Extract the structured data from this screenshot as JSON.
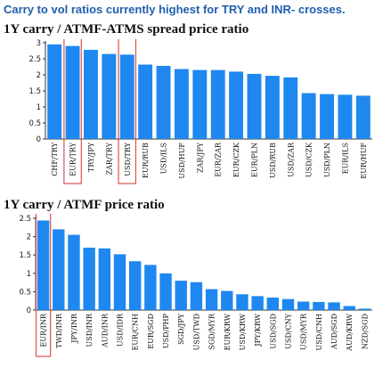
{
  "headline": "Carry to vol ratios currently highest for TRY and INR- crosses.",
  "colors": {
    "bar": "#1E88F0",
    "highlight": "#D9534F",
    "axis": "#333333",
    "headline": "#1F5FAE"
  },
  "chart_data": [
    {
      "type": "bar",
      "title": "1Y carry / ATMF-ATMS spread price ratio",
      "xlabel": "",
      "ylabel": "",
      "ylim": [
        0,
        3
      ],
      "yticks": [
        0,
        0.5,
        1,
        1.5,
        2,
        2.5,
        3
      ],
      "grid": false,
      "categories": [
        "CHF/TRY",
        "EUR/TRY",
        "TRY/JPY",
        "ZAR/TRY",
        "USD/TRY",
        "EUR/RUB",
        "USD/ILS",
        "USD/HUF",
        "ZAR/JPY",
        "EUR/ZAR",
        "EUR/CZK",
        "EUR/PLN",
        "USD/RUB",
        "USD/ZAR",
        "USD/CZK",
        "USD/PLN",
        "EUR/ILS",
        "EUR/HUF"
      ],
      "values": [
        2.95,
        2.9,
        2.78,
        2.65,
        2.63,
        2.32,
        2.28,
        2.18,
        2.15,
        2.15,
        2.1,
        2.03,
        1.97,
        1.92,
        1.43,
        1.4,
        1.38,
        1.35
      ],
      "highlighted": [
        "EUR/TRY",
        "USD/TRY"
      ]
    },
    {
      "type": "bar",
      "title": "1Y carry / ATMF price ratio",
      "xlabel": "",
      "ylabel": "",
      "ylim": [
        0,
        2.5
      ],
      "yticks": [
        0,
        0.5,
        1,
        1.5,
        2,
        2.5
      ],
      "grid": false,
      "categories": [
        "EUR/INR",
        "TWD/INR",
        "JPY/INR",
        "USD/INR",
        "AUD/INR",
        "USD/IDR",
        "EUR/CNH",
        "EUR/SGD",
        "USD/PHP",
        "SGD/JPY",
        "USD/TWD",
        "SGD/MYR",
        "EUR/KRW",
        "USD/KRW",
        "JPY/KRW",
        "USD/SGD",
        "USD/CNY",
        "USD/MYR",
        "USD/CNH",
        "AUD/SGD",
        "AUD/KRW",
        "NZD/SGD"
      ],
      "values": [
        2.44,
        2.2,
        2.05,
        1.7,
        1.68,
        1.52,
        1.33,
        1.23,
        1.0,
        0.8,
        0.76,
        0.57,
        0.52,
        0.43,
        0.38,
        0.34,
        0.3,
        0.23,
        0.22,
        0.21,
        0.11,
        0.04
      ],
      "highlighted": [
        "EUR/INR"
      ]
    }
  ]
}
